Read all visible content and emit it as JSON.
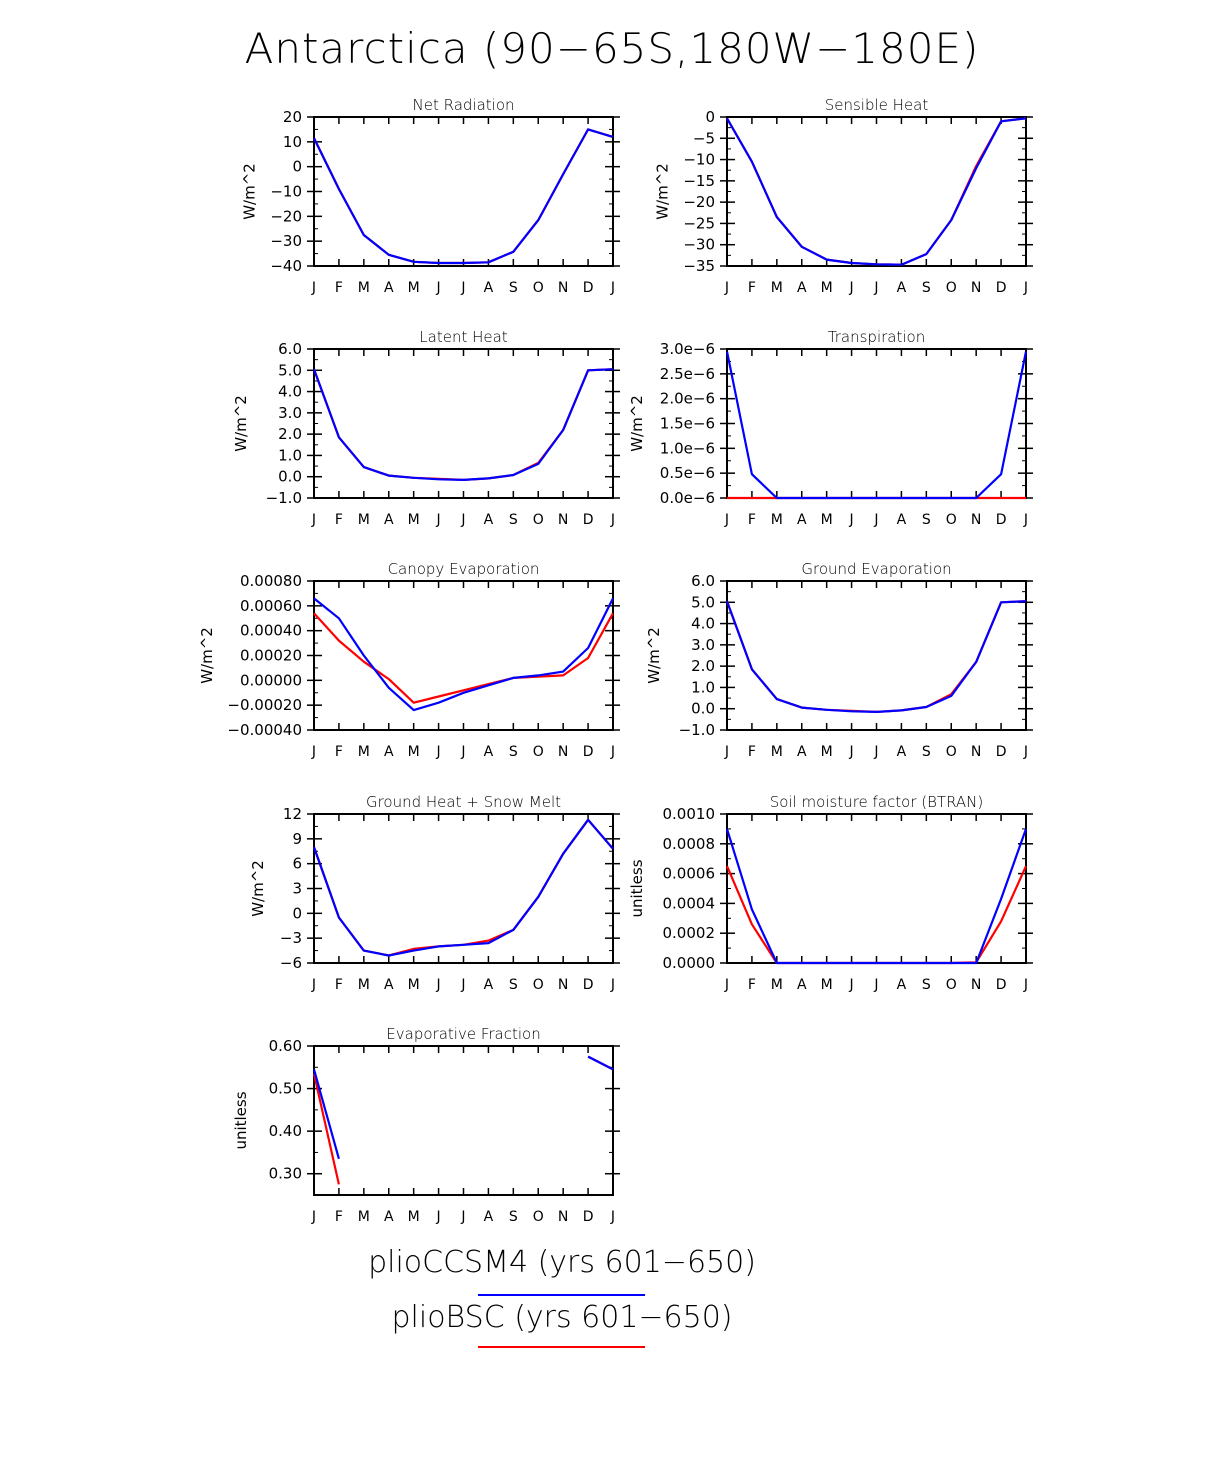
{
  "title": "Antarctica (90−65S,180W−180E)",
  "legend": [
    {
      "label": "plioCCSM4 (yrs 601−650)",
      "color": "#0000ff"
    },
    {
      "label": "plioBSC (yrs 601−650)",
      "color": "#ff0000"
    }
  ],
  "months": [
    "J",
    "F",
    "M",
    "A",
    "M",
    "J",
    "J",
    "A",
    "S",
    "O",
    "N",
    "D",
    "J"
  ],
  "chart_data": [
    {
      "type": "line",
      "title": "Net Radiation",
      "ylabel": "W/m^2",
      "ylim": [
        -40,
        20
      ],
      "yticks": [
        -40,
        -30,
        -20,
        -10,
        0,
        10,
        20
      ],
      "ytick_labels": [
        "−40",
        "−30",
        "−20",
        "−10",
        "0",
        "10",
        "20"
      ],
      "categories": [
        "J",
        "F",
        "M",
        "A",
        "M",
        "J",
        "J",
        "A",
        "S",
        "O",
        "N",
        "D",
        "J"
      ],
      "series": [
        {
          "name": "plioBSC (yrs 601−650)",
          "color": "#ff0000",
          "values": [
            11.5,
            -9,
            -27.5,
            -35.5,
            -38.3,
            -38.8,
            -38.8,
            -38.5,
            -34.3,
            -21.5,
            -3,
            15,
            12
          ]
        },
        {
          "name": "plioCCSM4 (yrs 601−650)",
          "color": "#0000ff",
          "values": [
            11.5,
            -9,
            -27.5,
            -35.5,
            -38.3,
            -38.8,
            -38.8,
            -38.5,
            -34.3,
            -21.5,
            -3,
            15,
            12
          ]
        }
      ]
    },
    {
      "type": "line",
      "title": "Sensible Heat",
      "ylabel": "W/m^2",
      "ylim": [
        -35,
        0
      ],
      "yticks": [
        -35,
        -30,
        -25,
        -20,
        -15,
        -10,
        -5,
        0
      ],
      "ytick_labels": [
        "−35",
        "−30",
        "−25",
        "−20",
        "−15",
        "−10",
        "−5",
        "0"
      ],
      "categories": [
        "J",
        "F",
        "M",
        "A",
        "M",
        "J",
        "J",
        "A",
        "S",
        "O",
        "N",
        "D",
        "J"
      ],
      "series": [
        {
          "name": "plioBSC (yrs 601−650)",
          "color": "#ff0000",
          "values": [
            -0.3,
            -10.5,
            -23.5,
            -30.5,
            -33.5,
            -34.3,
            -34.6,
            -34.7,
            -32.2,
            -24.2,
            -11.5,
            -1,
            -0.3
          ]
        },
        {
          "name": "plioCCSM4 (yrs 601−650)",
          "color": "#0000ff",
          "values": [
            -0.3,
            -10.5,
            -23.5,
            -30.5,
            -33.5,
            -34.3,
            -34.6,
            -34.7,
            -32.2,
            -24.2,
            -12,
            -1,
            -0.3
          ]
        }
      ]
    },
    {
      "type": "line",
      "title": "Latent Heat",
      "ylabel": "W/m^2",
      "ylim": [
        -1,
        6
      ],
      "yticks": [
        -1,
        0,
        1,
        2,
        3,
        4,
        5,
        6
      ],
      "ytick_labels": [
        "−1.0",
        "0.0",
        "1.0",
        "2.0",
        "3.0",
        "4.0",
        "5.0",
        "6.0"
      ],
      "categories": [
        "J",
        "F",
        "M",
        "A",
        "M",
        "J",
        "J",
        "A",
        "S",
        "O",
        "N",
        "D",
        "J"
      ],
      "series": [
        {
          "name": "plioBSC (yrs 601−650)",
          "color": "#ff0000",
          "values": [
            5.05,
            1.85,
            0.45,
            0.05,
            -0.05,
            -0.1,
            -0.15,
            -0.08,
            0.08,
            0.65,
            2.2,
            5.0,
            5.05
          ]
        },
        {
          "name": "plioCCSM4 (yrs 601−650)",
          "color": "#0000ff",
          "values": [
            5.05,
            1.85,
            0.45,
            0.05,
            -0.05,
            -0.12,
            -0.15,
            -0.08,
            0.08,
            0.6,
            2.2,
            5.0,
            5.05
          ]
        }
      ]
    },
    {
      "type": "line",
      "title": "Transpiration",
      "ylabel": "W/m^2",
      "ylim": [
        0,
        3e-06
      ],
      "yticks": [
        0,
        5e-07,
        1e-06,
        1.5e-06,
        2e-06,
        2.5e-06,
        3e-06
      ],
      "ytick_labels": [
        "0.0e−6",
        "0.5e−6",
        "1.0e−6",
        "1.5e−6",
        "2.0e−6",
        "2.5e−6",
        "3.0e−6"
      ],
      "categories": [
        "J",
        "F",
        "M",
        "A",
        "M",
        "J",
        "J",
        "A",
        "S",
        "O",
        "N",
        "D",
        "J"
      ],
      "series": [
        {
          "name": "plioBSC (yrs 601−650)",
          "color": "#ff0000",
          "values": [
            0,
            0,
            0,
            0,
            0,
            0,
            0,
            0,
            0,
            0,
            0,
            0,
            0
          ]
        },
        {
          "name": "plioCCSM4 (yrs 601−650)",
          "color": "#0000ff",
          "values": [
            2.95e-06,
            4.8e-07,
            0,
            0,
            0,
            0,
            0,
            0,
            0,
            0,
            0,
            4.8e-07,
            2.95e-06
          ]
        }
      ]
    },
    {
      "type": "line",
      "title": "Canopy Evaporation",
      "ylabel": "W/m^2",
      "ylim": [
        -0.0004,
        0.0008
      ],
      "yticks": [
        -0.0004,
        -0.0002,
        0,
        0.0002,
        0.0004,
        0.0006,
        0.0008
      ],
      "ytick_labels": [
        "−0.00040",
        "−0.00020",
        "0.00000",
        "0.00020",
        "0.00040",
        "0.00060",
        "0.00080"
      ],
      "categories": [
        "J",
        "F",
        "M",
        "A",
        "M",
        "J",
        "J",
        "A",
        "S",
        "O",
        "N",
        "D",
        "J"
      ],
      "series": [
        {
          "name": "plioBSC (yrs 601−650)",
          "color": "#ff0000",
          "values": [
            0.00054,
            0.00032,
            0.00015,
            1e-05,
            -0.00018,
            -0.00013,
            -8e-05,
            -3e-05,
            2e-05,
            3e-05,
            4e-05,
            0.00018,
            0.00054
          ]
        },
        {
          "name": "plioCCSM4 (yrs 601−650)",
          "color": "#0000ff",
          "values": [
            0.00066,
            0.0005,
            0.0002,
            -6e-05,
            -0.00024,
            -0.00018,
            -0.0001,
            -4e-05,
            2e-05,
            4e-05,
            7e-05,
            0.00026,
            0.00066
          ]
        }
      ]
    },
    {
      "type": "line",
      "title": "Ground Evaporation",
      "ylabel": "W/m^2",
      "ylim": [
        -1,
        6
      ],
      "yticks": [
        -1,
        0,
        1,
        2,
        3,
        4,
        5,
        6
      ],
      "ytick_labels": [
        "−1.0",
        "0.0",
        "1.0",
        "2.0",
        "3.0",
        "4.0",
        "5.0",
        "6.0"
      ],
      "categories": [
        "J",
        "F",
        "M",
        "A",
        "M",
        "J",
        "J",
        "A",
        "S",
        "O",
        "N",
        "D",
        "J"
      ],
      "series": [
        {
          "name": "plioBSC (yrs 601−650)",
          "color": "#ff0000",
          "values": [
            5.05,
            1.85,
            0.45,
            0.05,
            -0.05,
            -0.1,
            -0.15,
            -0.08,
            0.08,
            0.68,
            2.2,
            5.0,
            5.05
          ]
        },
        {
          "name": "plioCCSM4 (yrs 601−650)",
          "color": "#0000ff",
          "values": [
            5.05,
            1.85,
            0.45,
            0.05,
            -0.05,
            -0.12,
            -0.15,
            -0.08,
            0.08,
            0.6,
            2.2,
            5.0,
            5.05
          ]
        }
      ]
    },
    {
      "type": "line",
      "title": "Ground Heat + Snow Melt",
      "ylabel": "W/m^2",
      "ylim": [
        -6,
        12
      ],
      "yticks": [
        -6,
        -3,
        0,
        3,
        6,
        9,
        12
      ],
      "ytick_labels": [
        "−6",
        "−3",
        "0",
        "3",
        "6",
        "9",
        "12"
      ],
      "categories": [
        "J",
        "F",
        "M",
        "A",
        "M",
        "J",
        "J",
        "A",
        "S",
        "O",
        "N",
        "D",
        "J"
      ],
      "series": [
        {
          "name": "plioBSC (yrs 601−650)",
          "color": "#ff0000",
          "values": [
            8,
            -0.5,
            -4.5,
            -5.1,
            -4.3,
            -4,
            -3.8,
            -3.3,
            -2,
            2,
            7.2,
            11.3,
            7.8
          ]
        },
        {
          "name": "plioCCSM4 (yrs 601−650)",
          "color": "#0000ff",
          "values": [
            8,
            -0.5,
            -4.5,
            -5.1,
            -4.5,
            -4,
            -3.8,
            -3.6,
            -2,
            2,
            7.2,
            11.3,
            7.8
          ]
        }
      ]
    },
    {
      "type": "line",
      "title": "Soil moisture factor (BTRAN)",
      "ylabel": "unitless",
      "ylim": [
        0,
        0.001
      ],
      "yticks": [
        0,
        0.0002,
        0.0004,
        0.0006,
        0.0008,
        0.001
      ],
      "ytick_labels": [
        "0.0000",
        "0.0002",
        "0.0004",
        "0.0006",
        "0.0008",
        "0.0010"
      ],
      "categories": [
        "J",
        "F",
        "M",
        "A",
        "M",
        "J",
        "J",
        "A",
        "S",
        "O",
        "N",
        "D",
        "J"
      ],
      "series": [
        {
          "name": "plioBSC (yrs 601−650)",
          "color": "#ff0000",
          "values": [
            0.00065,
            0.00026,
            0,
            0,
            0,
            0,
            0,
            0,
            0,
            0,
            5e-06,
            0.00028,
            0.00065
          ]
        },
        {
          "name": "plioCCSM4 (yrs 601−650)",
          "color": "#0000ff",
          "values": [
            0.0009,
            0.00036,
            0,
            0,
            0,
            0,
            0,
            0,
            0,
            0,
            0,
            0.00043,
            0.0009
          ]
        }
      ]
    },
    {
      "type": "line",
      "title": "Evaporative Fraction",
      "ylabel": "unitless",
      "ylim": [
        0.25,
        0.6
      ],
      "yticks": [
        0.3,
        0.4,
        0.5,
        0.6
      ],
      "ytick_labels": [
        "0.30",
        "0.40",
        "0.50",
        "0.60"
      ],
      "categories": [
        "J",
        "F",
        "M",
        "A",
        "M",
        "J",
        "J",
        "A",
        "S",
        "O",
        "N",
        "D",
        "J"
      ],
      "series": [
        {
          "name": "plioBSC (yrs 601−650)",
          "color": "#ff0000",
          "values": [
            0.535,
            0.275,
            null,
            null,
            null,
            null,
            null,
            null,
            null,
            null,
            null,
            0.575,
            0.545
          ]
        },
        {
          "name": "plioCCSM4 (yrs 601−650)",
          "color": "#0000ff",
          "values": [
            0.545,
            0.335,
            null,
            null,
            null,
            null,
            null,
            null,
            null,
            null,
            null,
            0.575,
            0.545
          ]
        }
      ]
    }
  ]
}
